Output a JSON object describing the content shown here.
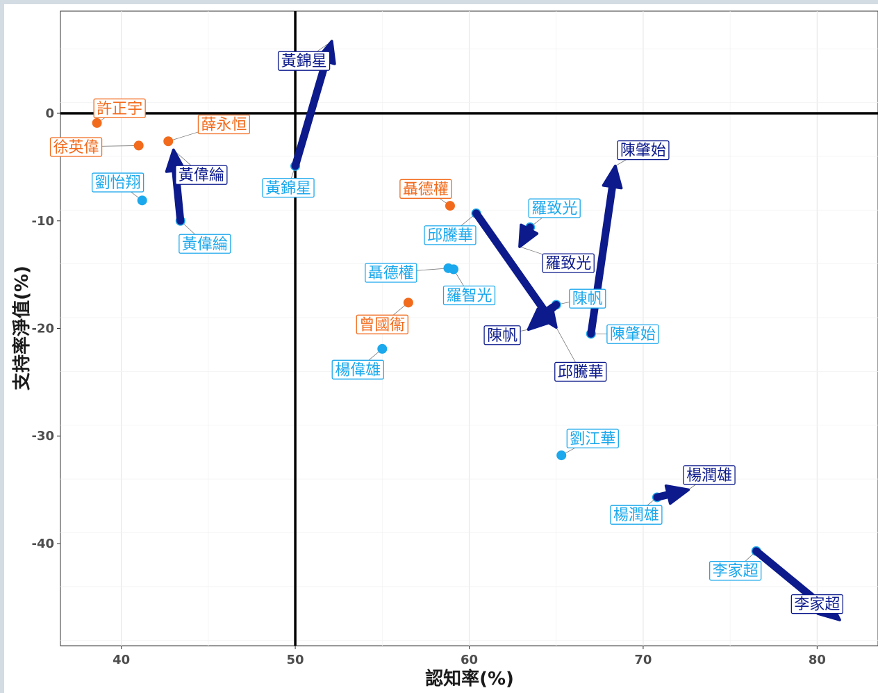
{
  "chart_data": {
    "type": "scatter",
    "title": "",
    "xlabel": "認知率(%)",
    "ylabel": "支持率淨值(%)",
    "xlim": [
      36.5,
      83.5
    ],
    "ylim": [
      -49.5,
      9.5
    ],
    "x_ticks": [
      40,
      50,
      60,
      70,
      80
    ],
    "y_ticks": [
      0,
      -10,
      -20,
      -30,
      -40
    ],
    "x_tick_labels": [
      "40",
      "50",
      "60",
      "70",
      "80"
    ],
    "y_tick_labels": [
      "0",
      "-10",
      "-20",
      "-30",
      "-40"
    ],
    "grid": true,
    "reference_lines": {
      "x": 50,
      "y": 0
    },
    "colors": {
      "orange": "#f26b1d",
      "light_blue": "#1ba8ec",
      "navy": "#0c1a8c"
    },
    "points": [
      {
        "name": "許正宇",
        "x": 38.6,
        "y": -0.9,
        "color": "orange"
      },
      {
        "name": "徐英偉",
        "x": 41.0,
        "y": -3.0,
        "color": "orange"
      },
      {
        "name": "薛永恒",
        "x": 42.7,
        "y": -2.6,
        "color": "orange"
      },
      {
        "name": "聶德權",
        "x": 58.9,
        "y": -8.6,
        "color": "orange"
      },
      {
        "name": "曾國衞",
        "x": 56.5,
        "y": -17.6,
        "color": "orange"
      },
      {
        "name": "劉怡翔",
        "x": 41.2,
        "y": -8.1,
        "color": "light_blue"
      },
      {
        "name": "黃偉綸",
        "x": 43.4,
        "y": -10.0,
        "color": "light_blue"
      },
      {
        "name": "黃錦星",
        "x": 50.0,
        "y": -4.9,
        "color": "light_blue"
      },
      {
        "name": "邱騰華",
        "x": 60.4,
        "y": -9.3,
        "color": "light_blue"
      },
      {
        "name": "羅致光",
        "x": 63.5,
        "y": -10.6,
        "color": "light_blue"
      },
      {
        "name": "聶德權",
        "x": 58.8,
        "y": -14.4,
        "color": "light_blue"
      },
      {
        "name": "羅智光",
        "x": 59.1,
        "y": -14.5,
        "color": "light_blue"
      },
      {
        "name": "陳帆",
        "x": 65.0,
        "y": -17.8,
        "color": "light_blue"
      },
      {
        "name": "陳肇始",
        "x": 67.0,
        "y": -20.5,
        "color": "light_blue"
      },
      {
        "name": "楊偉雄",
        "x": 55.0,
        "y": -21.9,
        "color": "light_blue"
      },
      {
        "name": "劉江華",
        "x": 65.3,
        "y": -31.8,
        "color": "light_blue"
      },
      {
        "name": "楊潤雄",
        "x": 70.8,
        "y": -35.7,
        "color": "light_blue"
      },
      {
        "name": "李家超",
        "x": 76.5,
        "y": -40.7,
        "color": "light_blue"
      }
    ],
    "arrows": [
      {
        "name": "黃偉綸",
        "from": [
          43.4,
          -10.0
        ],
        "to": [
          43.0,
          -3.4
        ]
      },
      {
        "name": "黃錦星",
        "from": [
          50.0,
          -4.9
        ],
        "to": [
          52.1,
          6.7
        ]
      },
      {
        "name": "羅致光",
        "from": [
          63.5,
          -10.6
        ],
        "to": [
          62.9,
          -12.4
        ]
      },
      {
        "name": "邱騰華",
        "from": [
          60.4,
          -9.3
        ],
        "to": [
          65.0,
          -19.9
        ]
      },
      {
        "name": "陳帆",
        "from": [
          65.0,
          -17.8
        ],
        "to": [
          63.4,
          -20.1
        ]
      },
      {
        "name": "陳肇始",
        "from": [
          67.0,
          -20.5
        ],
        "to": [
          68.4,
          -4.9
        ]
      },
      {
        "name": "楊潤雄",
        "from": [
          70.8,
          -35.7
        ],
        "to": [
          72.6,
          -35.0
        ]
      },
      {
        "name": "李家超",
        "from": [
          76.5,
          -40.7
        ],
        "to": [
          81.3,
          -47.1
        ]
      }
    ],
    "point_labels": [
      {
        "text": "許正宇",
        "color": "orange",
        "lx": 39.9,
        "ly": 0.5
      },
      {
        "text": "徐英偉",
        "color": "orange",
        "lx": 37.4,
        "ly": -3.1
      },
      {
        "text": "薛永恒",
        "color": "orange",
        "lx": 45.9,
        "ly": -1.0
      },
      {
        "text": "聶德權",
        "color": "orange",
        "lx": 57.5,
        "ly": -7.0
      },
      {
        "text": "曾國衞",
        "color": "orange",
        "lx": 55.0,
        "ly": -19.6
      },
      {
        "text": "劉怡翔",
        "color": "light_blue",
        "lx": 39.8,
        "ly": -6.4
      },
      {
        "text": "黃偉綸",
        "color": "light_blue",
        "lx": 44.8,
        "ly": -12.1
      },
      {
        "text": "黃錦星",
        "color": "light_blue",
        "lx": 49.6,
        "ly": -6.9
      },
      {
        "text": "邱騰華",
        "color": "light_blue",
        "lx": 58.9,
        "ly": -11.3
      },
      {
        "text": "羅致光",
        "color": "light_blue",
        "lx": 64.9,
        "ly": -8.8
      },
      {
        "text": "聶德權",
        "color": "light_blue",
        "lx": 55.5,
        "ly": -14.8
      },
      {
        "text": "羅智光",
        "color": "light_blue",
        "lx": 60.0,
        "ly": -16.9
      },
      {
        "text": "陳帆",
        "color": "light_blue",
        "lx": 66.8,
        "ly": -17.2
      },
      {
        "text": "陳肇始",
        "color": "light_blue",
        "lx": 69.4,
        "ly": -20.5
      },
      {
        "text": "楊偉雄",
        "color": "light_blue",
        "lx": 53.6,
        "ly": -23.8
      },
      {
        "text": "劉江華",
        "color": "light_blue",
        "lx": 67.1,
        "ly": -30.2
      },
      {
        "text": "楊潤雄",
        "color": "light_blue",
        "lx": 69.6,
        "ly": -37.3
      },
      {
        "text": "李家超",
        "color": "light_blue",
        "lx": 75.3,
        "ly": -42.5
      },
      {
        "text": "黃偉綸",
        "color": "navy",
        "lx": 44.6,
        "ly": -5.7
      },
      {
        "text": "黃錦星",
        "color": "navy",
        "lx": 50.5,
        "ly": 4.9
      },
      {
        "text": "羅致光",
        "color": "navy",
        "lx": 65.7,
        "ly": -13.9
      },
      {
        "text": "邱騰華",
        "color": "navy",
        "lx": 66.4,
        "ly": -24.0
      },
      {
        "text": "陳帆",
        "color": "navy",
        "lx": 61.9,
        "ly": -20.6
      },
      {
        "text": "陳肇始",
        "color": "navy",
        "lx": 70.0,
        "ly": -3.4
      },
      {
        "text": "楊潤雄",
        "color": "navy",
        "lx": 73.8,
        "ly": -33.6
      },
      {
        "text": "李家超",
        "color": "navy",
        "lx": 80.0,
        "ly": -45.6
      }
    ]
  }
}
